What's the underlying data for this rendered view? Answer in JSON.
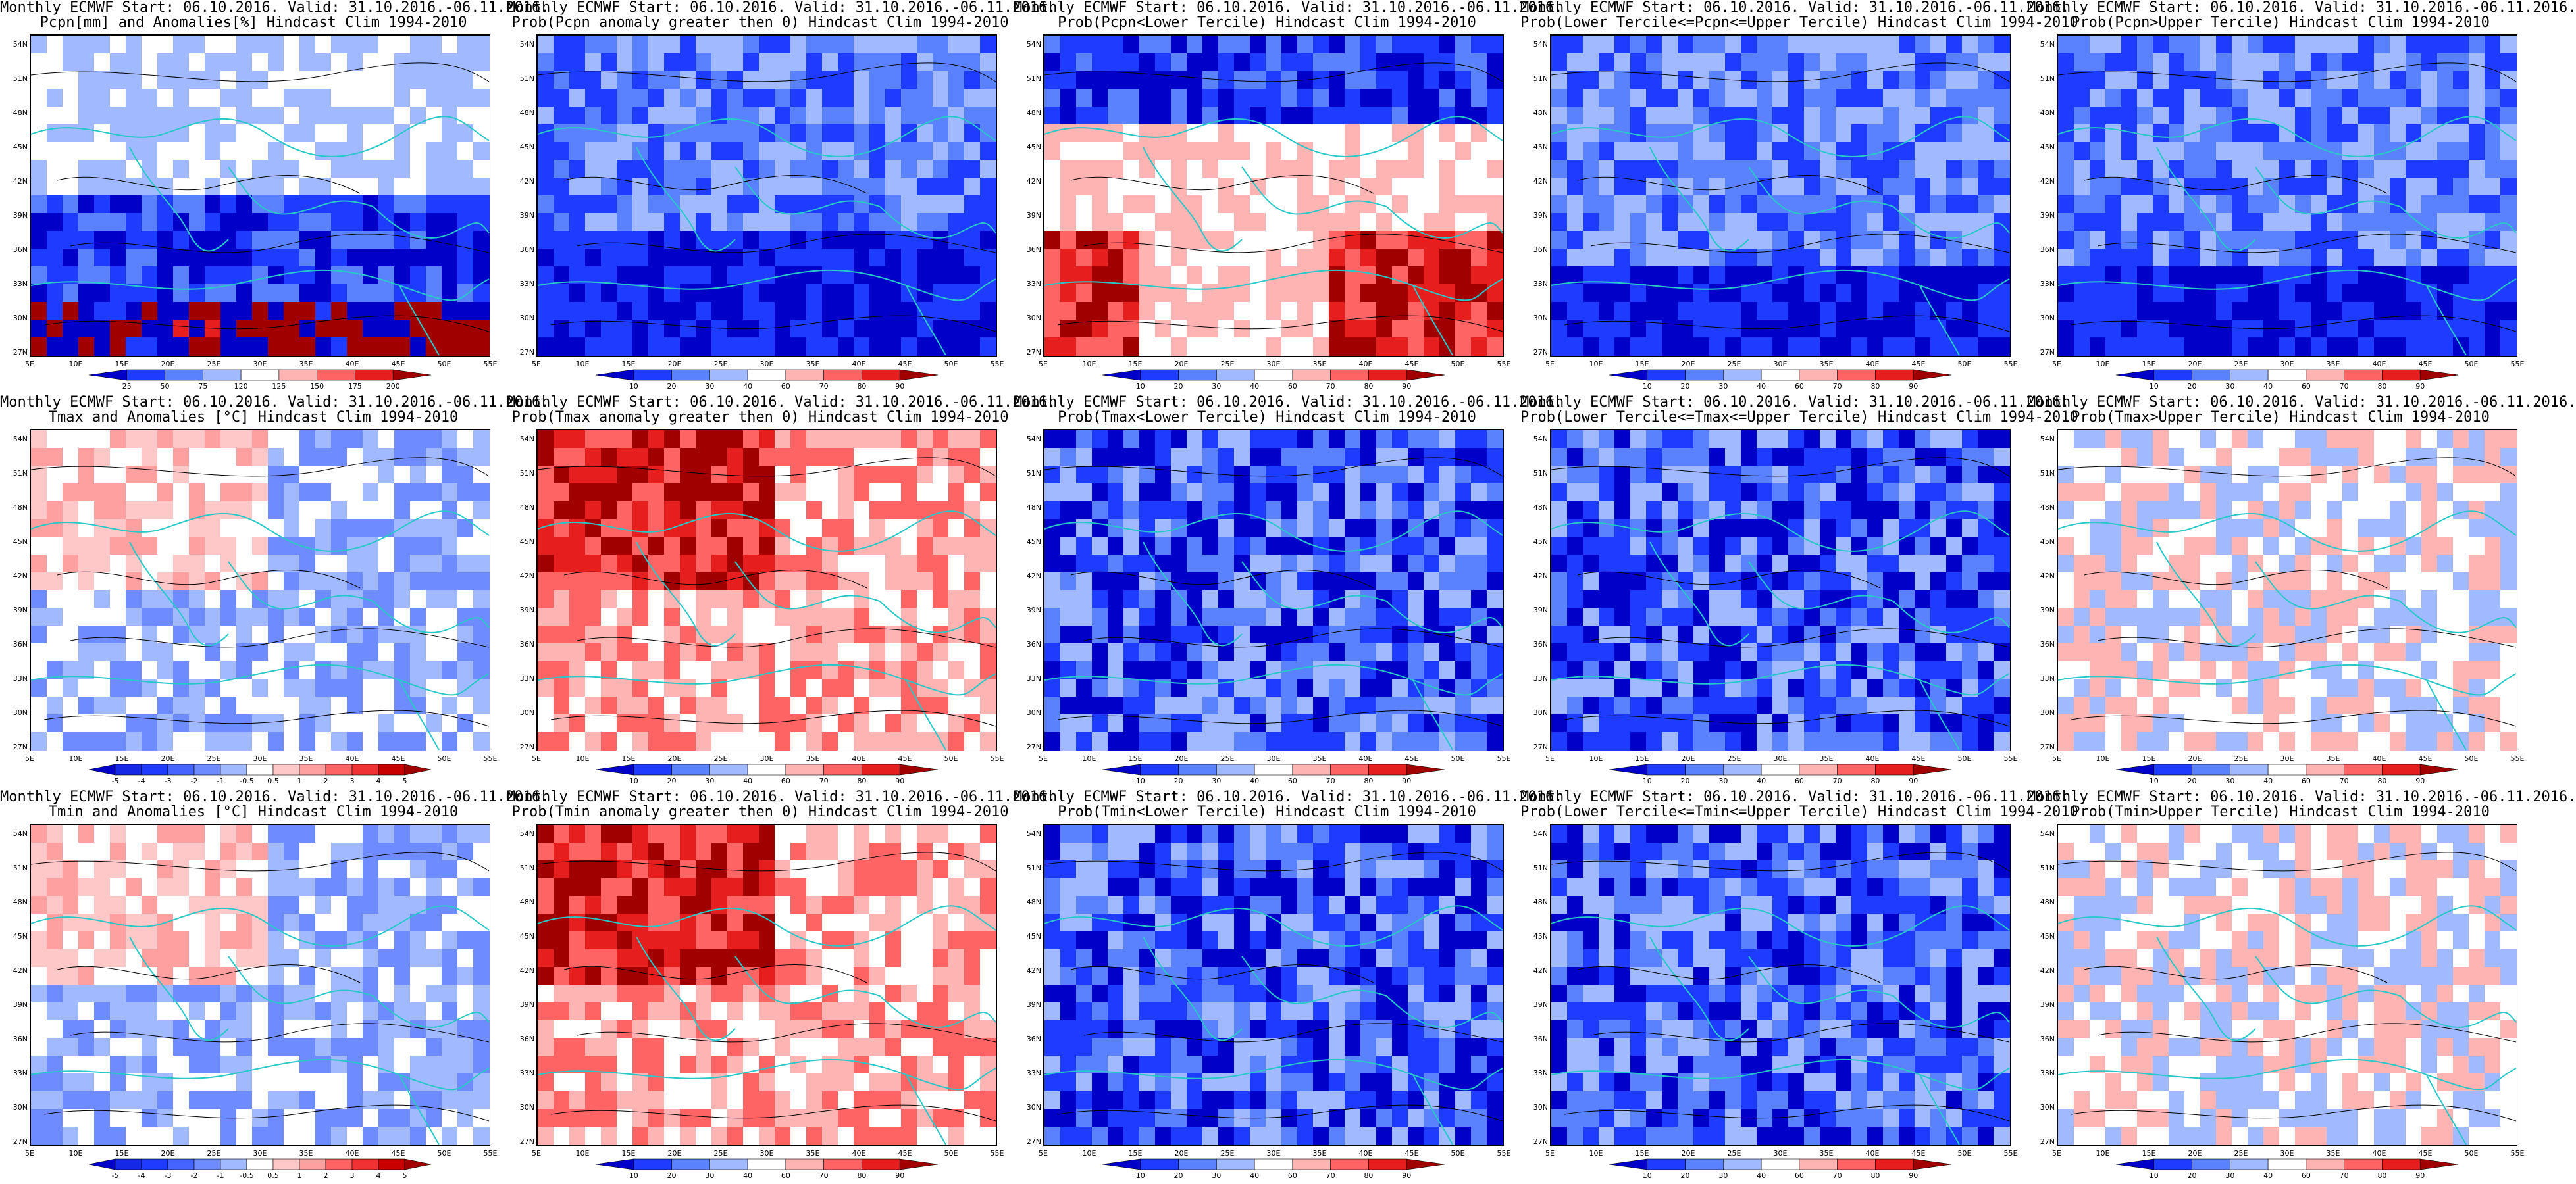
{
  "latitudes": [
    "54N",
    "51N",
    "48N",
    "45N",
    "42N",
    "39N",
    "36N",
    "33N",
    "30N",
    "27N"
  ],
  "longitudes": [
    "5E",
    "10E",
    "15E",
    "20E",
    "25E",
    "30E",
    "35E",
    "40E",
    "45E",
    "50E",
    "55E"
  ],
  "colorbars": {
    "pct": {
      "ticks": [
        "25",
        "50",
        "75",
        "120",
        "125",
        "150",
        "175",
        "200"
      ],
      "colors": [
        "#0000c8",
        "#1e3cff",
        "#5a82ff",
        "#a0b9ff",
        "#ffffff",
        "#ffb4b4",
        "#ff6464",
        "#e61e1e",
        "#a00000"
      ]
    },
    "prob": {
      "ticks": [
        "10",
        "20",
        "30",
        "40",
        "60",
        "70",
        "80",
        "90"
      ],
      "colors": [
        "#0000c8",
        "#1e3cff",
        "#5a82ff",
        "#a0b9ff",
        "#ffffff",
        "#ffb4b4",
        "#ff6464",
        "#e61e1e",
        "#a00000"
      ]
    },
    "temp": {
      "ticks": [
        "-5",
        "-4",
        "-3",
        "-2",
        "-1",
        "-0.5",
        "0.5",
        "1",
        "2",
        "3",
        "4",
        "5"
      ],
      "colors": [
        "#0000c8",
        "#1428e6",
        "#1e3cff",
        "#4664ff",
        "#6e8cff",
        "#a0b9ff",
        "#ffffff",
        "#ffc8c8",
        "#ffa0a0",
        "#ff6464",
        "#f03232",
        "#c80000",
        "#a00000"
      ]
    }
  },
  "palette": {
    "coast": "#28c8c8",
    "contour": "#000000"
  },
  "panels": [
    {
      "line1": "Monthly ECMWF Start: 06.10.2016. Valid: 31.10.2016.-06.11.2016.",
      "line2": "Pcpn[mm] and Anomalies[%] Hindcast Clim 1994-2010",
      "cbar": "pct"
    },
    {
      "line1": "Monthly ECMWF Start: 06.10.2016. Valid: 31.10.2016.-06.11.2016.",
      "line2": "Prob(Pcpn anomaly greater then 0) Hindcast Clim 1994-2010",
      "cbar": "prob"
    },
    {
      "line1": "Monthly ECMWF Start: 06.10.2016. Valid: 31.10.2016.-06.11.2016.",
      "line2": "Prob(Pcpn<Lower Tercile) Hindcast Clim 1994-2010",
      "cbar": "prob"
    },
    {
      "line1": "Monthly ECMWF Start: 06.10.2016. Valid: 31.10.2016.-06.11.2016.",
      "line2": "Prob(Lower Tercile<=Pcpn<=Upper Tercile) Hindcast Clim 1994-2010",
      "cbar": "prob"
    },
    {
      "line1": "Monthly ECMWF Start: 06.10.2016. Valid: 31.10.2016.-06.11.2016.",
      "line2": "Prob(Pcpn>Upper Tercile) Hindcast Clim 1994-2010",
      "cbar": "prob"
    },
    {
      "line1": "Monthly ECMWF Start: 06.10.2016. Valid: 31.10.2016.-06.11.2016.",
      "line2": "Tmax and Anomalies [°C] Hindcast Clim 1994-2010",
      "cbar": "temp"
    },
    {
      "line1": "Monthly ECMWF Start: 06.10.2016. Valid: 31.10.2016.-06.11.2016.",
      "line2": "Prob(Tmax anomaly greater then 0) Hindcast Clim 1994-2010",
      "cbar": "prob"
    },
    {
      "line1": "Monthly ECMWF Start: 06.10.2016. Valid: 31.10.2016.-06.11.2016.",
      "line2": "Prob(Tmax<Lower Tercile) Hindcast Clim 1994-2010",
      "cbar": "prob"
    },
    {
      "line1": "Monthly ECMWF Start: 06.10.2016. Valid: 31.10.2016.-06.11.2016.",
      "line2": "Prob(Lower Tercile<=Tmax<=Upper Tercile) Hindcast Clim 1994-2010",
      "cbar": "prob"
    },
    {
      "line1": "Monthly ECMWF Start: 06.10.2016. Valid: 31.10.2016.-06.11.2016.",
      "line2": "Prob(Tmax>Upper Tercile) Hindcast Clim 1994-2010",
      "cbar": "prob"
    },
    {
      "line1": "Monthly ECMWF Start: 06.10.2016. Valid: 31.10.2016.-06.11.2016.",
      "line2": "Tmin and Anomalies [°C] Hindcast Clim 1994-2010",
      "cbar": "temp"
    },
    {
      "line1": "Monthly ECMWF Start: 06.10.2016. Valid: 31.10.2016.-06.11.2016.",
      "line2": "Prob(Tmin anomaly greater then 0) Hindcast Clim 1994-2010",
      "cbar": "prob"
    },
    {
      "line1": "Monthly ECMWF Start: 06.10.2016. Valid: 31.10.2016.-06.11.2016.",
      "line2": "Prob(Tmin<Lower Tercile) Hindcast Clim 1994-2010",
      "cbar": "prob"
    },
    {
      "line1": "Monthly ECMWF Start: 06.10.2016. Valid: 31.10.2016.-06.11.2016.",
      "line2": "Prob(Lower Tercile<=Tmin<=Upper Tercile) Hindcast Clim 1994-2010",
      "cbar": "prob"
    },
    {
      "line1": "Monthly ECMWF Start: 06.10.2016. Valid: 31.10.2016.-06.11.2016.",
      "line2": "Prob(Tmin>Upper Tercile) Hindcast Clim 1994-2010",
      "cbar": "prob"
    }
  ]
}
